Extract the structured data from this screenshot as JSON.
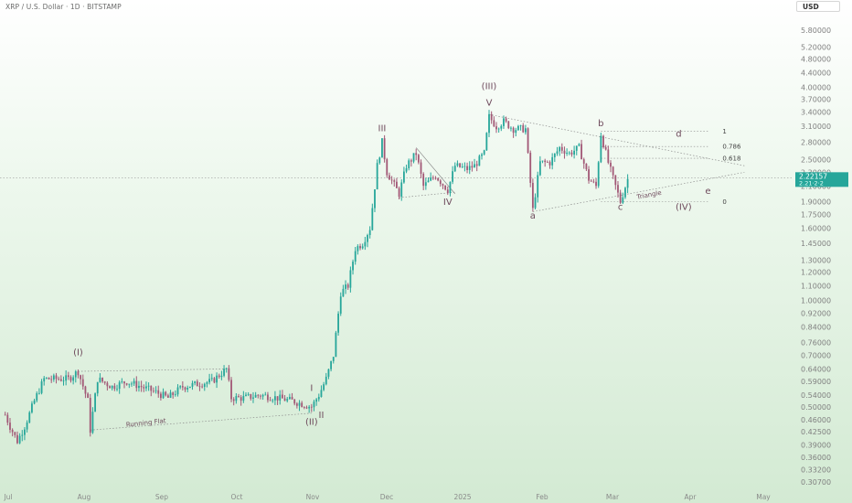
{
  "header": {
    "title": "XRP / U.S. Dollar · 1D · BITSTAMP",
    "currency_button": "USD"
  },
  "price_tag": {
    "line1": "2.22157",
    "line2": "2.21·2·2",
    "color": "#26a69a"
  },
  "colors": {
    "up": "#26a69a",
    "down": "#a25876",
    "annotation": "#6e4a5c",
    "trendline": "#8c8c8c",
    "tag": "#26a69a"
  },
  "chart_data": {
    "type": "candlestick",
    "y_scale": "log",
    "ylim": [
      0.2978,
      6.3
    ],
    "y_ticks": [
      "5.80000",
      "5.20000",
      "4.80000",
      "4.40000",
      "4.00000",
      "3.70000",
      "3.40000",
      "3.10000",
      "2.80000",
      "2.50000",
      "2.30000",
      "2.10000",
      "1.90000",
      "1.75000",
      "1.60000",
      "1.45000",
      "1.30000",
      "1.20000",
      "1.10000",
      "1.00000",
      "0.92000",
      "0.84000",
      "0.76000",
      "0.70000",
      "0.64000",
      "0.59000",
      "0.54000",
      "0.50000",
      "0.46000",
      "0.42500",
      "0.39000",
      "0.36000",
      "0.33200",
      "0.30700"
    ],
    "x_ticks": [
      "Jul",
      "Aug",
      "Sep",
      "Oct",
      "Nov",
      "Dec",
      "2025",
      "Feb",
      "Mar",
      "Apr",
      "May"
    ],
    "last_price": 2.22,
    "series_path": [
      {
        "x": "2024-07-01",
        "y": 0.475
      },
      {
        "x": "2024-07-03",
        "y": 0.44
      },
      {
        "x": "2024-07-06",
        "y": 0.4
      },
      {
        "x": "2024-07-09",
        "y": 0.44
      },
      {
        "x": "2024-07-13",
        "y": 0.52
      },
      {
        "x": "2024-07-17",
        "y": 0.6
      },
      {
        "x": "2024-07-22",
        "y": 0.6
      },
      {
        "x": "2024-07-27",
        "y": 0.6
      },
      {
        "x": "2024-07-31",
        "y": 0.63
      },
      {
        "x": "2024-08-04",
        "y": 0.52
      },
      {
        "x": "2024-08-05",
        "y": 0.43
      },
      {
        "x": "2024-08-08",
        "y": 0.6
      },
      {
        "x": "2024-08-14",
        "y": 0.57
      },
      {
        "x": "2024-08-20",
        "y": 0.59
      },
      {
        "x": "2024-08-26",
        "y": 0.57
      },
      {
        "x": "2024-09-01",
        "y": 0.55
      },
      {
        "x": "2024-09-06",
        "y": 0.53
      },
      {
        "x": "2024-09-12",
        "y": 0.57
      },
      {
        "x": "2024-09-18",
        "y": 0.58
      },
      {
        "x": "2024-09-24",
        "y": 0.59
      },
      {
        "x": "2024-09-30",
        "y": 0.64
      },
      {
        "x": "2024-10-02",
        "y": 0.53
      },
      {
        "x": "2024-10-07",
        "y": 0.53
      },
      {
        "x": "2024-10-14",
        "y": 0.54
      },
      {
        "x": "2024-10-21",
        "y": 0.53
      },
      {
        "x": "2024-10-27",
        "y": 0.52
      },
      {
        "x": "2024-10-31",
        "y": 0.51
      },
      {
        "x": "2024-11-04",
        "y": 0.5
      },
      {
        "x": "2024-11-07",
        "y": 0.54
      },
      {
        "x": "2024-11-10",
        "y": 0.6
      },
      {
        "x": "2024-11-13",
        "y": 0.7
      },
      {
        "x": "2024-11-16",
        "y": 1.05
      },
      {
        "x": "2024-11-19",
        "y": 1.1
      },
      {
        "x": "2024-11-22",
        "y": 1.4
      },
      {
        "x": "2024-11-25",
        "y": 1.45
      },
      {
        "x": "2024-11-28",
        "y": 1.6
      },
      {
        "x": "2024-12-01",
        "y": 2.4
      },
      {
        "x": "2024-12-03",
        "y": 2.8
      },
      {
        "x": "2024-12-05",
        "y": 2.3
      },
      {
        "x": "2024-12-10",
        "y": 2.0
      },
      {
        "x": "2024-12-13",
        "y": 2.4
      },
      {
        "x": "2024-12-17",
        "y": 2.6
      },
      {
        "x": "2024-12-20",
        "y": 2.1
      },
      {
        "x": "2024-12-25",
        "y": 2.25
      },
      {
        "x": "2024-12-30",
        "y": 2.05
      },
      {
        "x": "2025-01-02",
        "y": 2.4
      },
      {
        "x": "2025-01-07",
        "y": 2.35
      },
      {
        "x": "2025-01-10",
        "y": 2.4
      },
      {
        "x": "2025-01-14",
        "y": 2.6
      },
      {
        "x": "2025-01-16",
        "y": 3.3
      },
      {
        "x": "2025-01-19",
        "y": 3.1
      },
      {
        "x": "2025-01-22",
        "y": 3.2
      },
      {
        "x": "2025-01-26",
        "y": 3.05
      },
      {
        "x": "2025-01-31",
        "y": 3.05
      },
      {
        "x": "2025-02-03",
        "y": 1.8
      },
      {
        "x": "2025-02-06",
        "y": 2.45
      },
      {
        "x": "2025-02-10",
        "y": 2.45
      },
      {
        "x": "2025-02-14",
        "y": 2.7
      },
      {
        "x": "2025-02-18",
        "y": 2.6
      },
      {
        "x": "2025-02-22",
        "y": 2.7
      },
      {
        "x": "2025-02-26",
        "y": 2.2
      },
      {
        "x": "2025-03-01",
        "y": 2.1
      },
      {
        "x": "2025-03-03",
        "y": 2.95
      },
      {
        "x": "2025-03-06",
        "y": 2.45
      },
      {
        "x": "2025-03-09",
        "y": 2.1
      },
      {
        "x": "2025-03-11",
        "y": 1.9
      },
      {
        "x": "2025-03-14",
        "y": 2.2
      }
    ],
    "fibonacci": [
      {
        "label": "1",
        "y": 3.0
      },
      {
        "label": "0.786",
        "y": 2.72
      },
      {
        "label": "0.618",
        "y": 2.52
      },
      {
        "label": "0",
        "y": 1.9
      }
    ],
    "annotations": [
      {
        "text": "(I)",
        "x": "2024-07-31",
        "y": 0.7,
        "size": "big"
      },
      {
        "text": "(II)",
        "x": "2024-11-04",
        "y": 0.445,
        "size": "big"
      },
      {
        "text": "I",
        "x": "2024-11-04",
        "y": 0.555,
        "size": "big"
      },
      {
        "text": "II",
        "x": "2024-11-08",
        "y": 0.465,
        "size": "big"
      },
      {
        "text": "III",
        "x": "2024-12-03",
        "y": 3.0,
        "size": "big"
      },
      {
        "text": "IV",
        "x": "2024-12-30",
        "y": 1.86,
        "size": "big"
      },
      {
        "text": "(III)",
        "x": "2025-01-16",
        "y": 3.95,
        "size": "big"
      },
      {
        "text": "V",
        "x": "2025-01-16",
        "y": 3.55,
        "size": "big"
      },
      {
        "text": "a",
        "x": "2025-02-03",
        "y": 1.7,
        "size": "big"
      },
      {
        "text": "b",
        "x": "2025-03-03",
        "y": 3.1,
        "size": "big"
      },
      {
        "text": "c",
        "x": "2025-03-11",
        "y": 1.8,
        "size": "big"
      },
      {
        "text": "d",
        "x": "2025-04-04",
        "y": 2.9,
        "size": "big"
      },
      {
        "text": "e",
        "x": "2025-04-16",
        "y": 2.0,
        "size": "big"
      },
      {
        "text": "(IV)",
        "x": "2025-04-06",
        "y": 1.8,
        "size": "big"
      },
      {
        "text": "Running Flat",
        "x": "2024-08-28",
        "y": 0.445,
        "size": "small",
        "angle": -6
      },
      {
        "text": "Triangle",
        "x": "2025-03-23",
        "y": 1.96,
        "size": "small",
        "angle": -11
      }
    ]
  }
}
